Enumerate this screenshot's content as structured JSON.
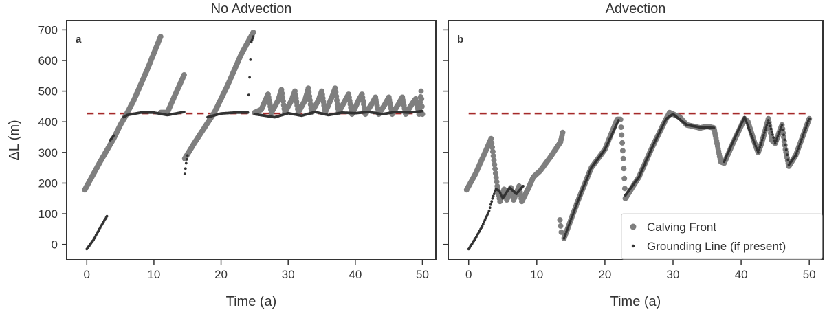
{
  "chart_data": [
    {
      "type": "scatter",
      "title": "No Advection",
      "panel_label": "a",
      "xlabel": "Time (a)",
      "ylabel": "ΔL (m)",
      "xlim": [
        -3,
        52
      ],
      "ylim": [
        -50,
        730
      ],
      "xticks": [
        0,
        10,
        20,
        30,
        40,
        50
      ],
      "yticks": [
        0,
        100,
        200,
        300,
        400,
        500,
        600,
        700
      ],
      "reference_line": {
        "y": 427,
        "x_range": [
          0,
          50
        ],
        "color": "#a52a2a",
        "style": "dashed"
      },
      "series": [
        {
          "name": "Calving Front",
          "color": "#7f7f7f",
          "segments": [
            [
              [
                -0.3,
                178
              ],
              [
                2,
                270
              ],
              [
                4,
                345
              ],
              [
                5,
                390
              ],
              [
                5.8,
                420
              ],
              [
                7,
                470
              ],
              [
                9,
                570
              ],
              [
                11,
                678
              ]
            ],
            [
              [
                11,
                430
              ],
              [
                12,
                430
              ],
              [
                13,
                480
              ],
              [
                14.5,
                553
              ]
            ],
            [
              [
                14.6,
                280
              ],
              [
                16,
                330
              ],
              [
                17.5,
                380
              ],
              [
                19,
                430
              ],
              [
                21,
                520
              ],
              [
                23,
                620
              ],
              [
                24.8,
                692
              ]
            ],
            [
              [
                25,
                430
              ],
              [
                26,
                440
              ],
              [
                27,
                490
              ],
              [
                27.5,
                430
              ],
              [
                28.5,
                470
              ],
              [
                29,
                505
              ],
              [
                29.5,
                430
              ],
              [
                30.5,
                470
              ],
              [
                31,
                500
              ],
              [
                31.5,
                430
              ],
              [
                32.5,
                470
              ],
              [
                33,
                510
              ],
              [
                33.5,
                430
              ],
              [
                34.5,
                470
              ],
              [
                35,
                500
              ],
              [
                35.5,
                430
              ],
              [
                36.5,
                480
              ],
              [
                37,
                510
              ],
              [
                37.5,
                430
              ],
              [
                38.5,
                470
              ],
              [
                39,
                490
              ],
              [
                39.5,
                425
              ],
              [
                40.5,
                470
              ],
              [
                41,
                490
              ],
              [
                41.5,
                425
              ],
              [
                42.5,
                460
              ],
              [
                43,
                480
              ],
              [
                43.5,
                425
              ],
              [
                44.5,
                460
              ],
              [
                45,
                480
              ],
              [
                45.5,
                425
              ],
              [
                46.5,
                460
              ],
              [
                47,
                480
              ],
              [
                47.5,
                425
              ],
              [
                48.5,
                460
              ],
              [
                49,
                475
              ],
              [
                49.5,
                425
              ],
              [
                49.8,
                500
              ],
              [
                50,
                425
              ]
            ]
          ]
        },
        {
          "name": "Grounding Line (if present)",
          "color": "#333333",
          "segments": [
            [
              [
                0,
                -15
              ],
              [
                1,
                15
              ],
              [
                2,
                55
              ],
              [
                3,
                92
              ]
            ],
            [
              [
                3.5,
                340
              ],
              [
                4,
                355
              ]
            ],
            [
              [
                5.5,
                415
              ],
              [
                6,
                422
              ],
              [
                8,
                430
              ],
              [
                10,
                430
              ],
              [
                12,
                422
              ],
              [
                14.5,
                432
              ]
            ],
            [
              [
                14.6,
                230
              ],
              [
                14.8,
                265
              ],
              [
                15,
                290
              ]
            ],
            [
              [
                18,
                415
              ],
              [
                20,
                427
              ],
              [
                22,
                430
              ],
              [
                24,
                430
              ],
              [
                24.5,
                660
              ],
              [
                24.8,
                678
              ]
            ],
            [
              [
                25,
                425
              ],
              [
                28,
                415
              ],
              [
                30,
                428
              ],
              [
                32,
                420
              ],
              [
                34,
                432
              ],
              [
                36,
                422
              ],
              [
                38,
                430
              ],
              [
                40,
                428
              ],
              [
                42,
                432
              ],
              [
                44,
                425
              ],
              [
                46,
                432
              ],
              [
                48,
                430
              ],
              [
                50,
                435
              ]
            ]
          ]
        }
      ]
    },
    {
      "type": "scatter",
      "title": "Advection",
      "panel_label": "b",
      "xlabel": "Time (a)",
      "ylabel": "",
      "xlim": [
        -3,
        52
      ],
      "ylim": [
        -50,
        730
      ],
      "xticks": [
        0,
        10,
        20,
        30,
        40,
        50
      ],
      "yticks": [
        0,
        100,
        200,
        300,
        400,
        500,
        600,
        700
      ],
      "reference_line": {
        "y": 427,
        "x_range": [
          0,
          50
        ],
        "color": "#a52a2a",
        "style": "dashed"
      },
      "legend": {
        "placement": "lower-right",
        "entries": [
          "Calving Front",
          "Grounding Line (if present)"
        ]
      },
      "series": [
        {
          "name": "Calving Front",
          "color": "#7f7f7f",
          "segments": [
            [
              [
                -0.3,
                178
              ],
              [
                1,
                230
              ],
              [
                2,
                280
              ],
              [
                3.3,
                345
              ],
              [
                4.2,
                190
              ],
              [
                4.6,
                140
              ],
              [
                5.2,
                180
              ],
              [
                5.6,
                145
              ],
              [
                6.2,
                185
              ],
              [
                6.6,
                145
              ],
              [
                7.4,
                190
              ],
              [
                7.8,
                140
              ],
              [
                8.8,
                185
              ],
              [
                9.5,
                220
              ],
              [
                10.5,
                240
              ],
              [
                12,
                285
              ],
              [
                13.5,
                335
              ],
              [
                13.8,
                365
              ]
            ],
            [
              [
                13.4,
                80
              ],
              [
                13.5,
                60
              ],
              [
                13.6,
                40
              ]
            ],
            [
              [
                14,
                20
              ],
              [
                16,
                140
              ],
              [
                18,
                250
              ],
              [
                20,
                310
              ],
              [
                21.8,
                408
              ],
              [
                22.3,
                408
              ],
              [
                22.7,
                280
              ],
              [
                23,
                150
              ],
              [
                25,
                220
              ],
              [
                27,
                320
              ],
              [
                29,
                410
              ],
              [
                29.5,
                430
              ],
              [
                31,
                415
              ],
              [
                32,
                390
              ],
              [
                33,
                385
              ],
              [
                34,
                380
              ],
              [
                35,
                385
              ],
              [
                36,
                380
              ],
              [
                37,
                270
              ],
              [
                37.5,
                265
              ],
              [
                39,
                340
              ],
              [
                40.5,
                410
              ],
              [
                41,
                400
              ],
              [
                42,
                330
              ],
              [
                42.5,
                300
              ],
              [
                43,
                330
              ],
              [
                44,
                410
              ],
              [
                44.5,
                340
              ],
              [
                45,
                330
              ],
              [
                46,
                390
              ],
              [
                46.5,
                310
              ],
              [
                47,
                255
              ],
              [
                48,
                290
              ],
              [
                49,
                350
              ],
              [
                50,
                410
              ]
            ]
          ]
        },
        {
          "name": "Grounding Line (if present)",
          "color": "#333333",
          "segments": [
            [
              [
                0,
                -15
              ],
              [
                1,
                20
              ],
              [
                2,
                60
              ],
              [
                3,
                110
              ],
              [
                3.5,
                150
              ],
              [
                4,
                180
              ],
              [
                4.5,
                175
              ],
              [
                5,
                150
              ],
              [
                6,
                185
              ],
              [
                7,
                165
              ],
              [
                8,
                190
              ]
            ],
            [
              [
                14,
                20
              ],
              [
                16,
                140
              ],
              [
                18,
                250
              ],
              [
                20,
                310
              ],
              [
                22,
                405
              ]
            ],
            [
              [
                23,
                160
              ],
              [
                25,
                220
              ],
              [
                27,
                320
              ],
              [
                29,
                410
              ],
              [
                30,
                425
              ],
              [
                32,
                390
              ],
              [
                34,
                382
              ],
              [
                36,
                380
              ]
            ],
            [
              [
                37.5,
                270
              ],
              [
                39,
                345
              ],
              [
                40.5,
                415
              ],
              [
                42.5,
                300
              ],
              [
                44,
                405
              ],
              [
                45,
                330
              ],
              [
                46,
                390
              ],
              [
                47,
                260
              ],
              [
                48,
                290
              ],
              [
                49,
                350
              ],
              [
                50,
                410
              ]
            ]
          ]
        }
      ]
    }
  ]
}
